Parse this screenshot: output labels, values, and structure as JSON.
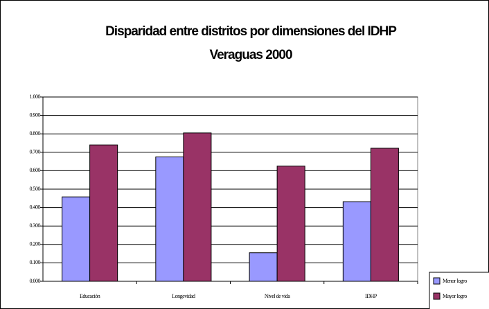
{
  "chart_data": {
    "type": "bar",
    "title": "Disparidad entre distritos por dimensiones del IDHP",
    "subtitle": "Veraguas 2000",
    "categories": [
      "Educación",
      "Longevidad",
      "Nivel de vida",
      "IDHP"
    ],
    "series": [
      {
        "name": "Menor logro",
        "color": "#9999ff",
        "values": [
          0.458,
          0.675,
          0.155,
          0.432
        ]
      },
      {
        "name": "Mayor logro",
        "color": "#993366",
        "values": [
          0.74,
          0.805,
          0.625,
          0.722
        ]
      }
    ],
    "ylim": [
      0,
      1
    ],
    "yticks": [
      {
        "value": 0,
        "label": "0.000"
      },
      {
        "value": 0.1,
        "label": "0.100"
      },
      {
        "value": 0.2,
        "label": "0.200"
      },
      {
        "value": 0.3,
        "label": "0.300"
      },
      {
        "value": 0.4,
        "label": "0.400"
      },
      {
        "value": 0.5,
        "label": "0.500"
      },
      {
        "value": 0.6,
        "label": "0.600"
      },
      {
        "value": 0.7,
        "label": "0.700"
      },
      {
        "value": 0.8,
        "label": "0.800"
      },
      {
        "value": 0.9,
        "label": "0.900"
      },
      {
        "value": 1,
        "label": "1.000"
      }
    ],
    "grid": true,
    "legend": "bottom-right"
  }
}
